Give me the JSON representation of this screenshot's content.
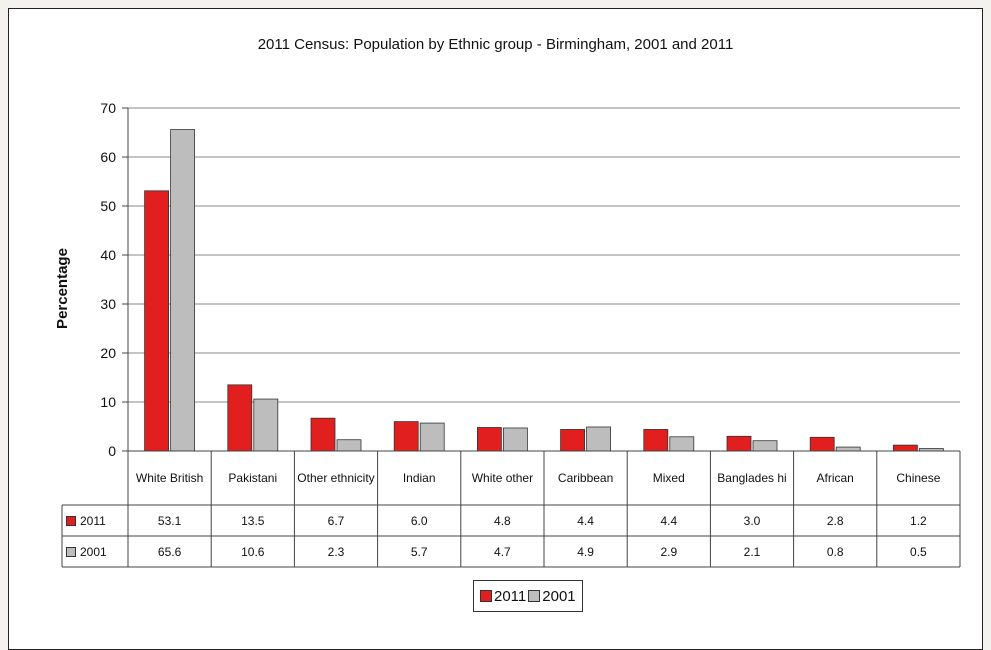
{
  "chart_data": {
    "type": "bar",
    "title": "2011 Census: Population by Ethnic group - Birmingham, 2001 and 2011",
    "ylabel": "Percentage",
    "xlabel": "",
    "ylim": [
      0,
      70
    ],
    "yticks": [
      0,
      10,
      20,
      30,
      40,
      50,
      60,
      70
    ],
    "grid": true,
    "legend_position": "bottom",
    "categories": [
      "White British",
      "Pakistani",
      "Other ethnicity",
      "Indian",
      "White other",
      "Caribbean",
      "Mixed",
      "Banglades hi",
      "African",
      "Chinese"
    ],
    "series": [
      {
        "name": "2011",
        "color": "#e21f1f",
        "values": [
          53.1,
          13.5,
          6.7,
          6.0,
          4.8,
          4.4,
          4.4,
          3.0,
          2.8,
          1.2
        ],
        "labels": [
          "53.1",
          "13.5",
          "6.7",
          "6.0",
          "4.8",
          "4.4",
          "4.4",
          "3.0",
          "2.8",
          "1.2"
        ]
      },
      {
        "name": "2001",
        "color": "#bdbdbd",
        "values": [
          65.6,
          10.6,
          2.3,
          5.7,
          4.7,
          4.9,
          2.9,
          2.1,
          0.8,
          0.5
        ],
        "labels": [
          "65.6",
          "10.6",
          "2.3",
          "5.7",
          "4.7",
          "4.9",
          "2.9",
          "2.1",
          "0.8",
          "0.5"
        ]
      }
    ]
  }
}
